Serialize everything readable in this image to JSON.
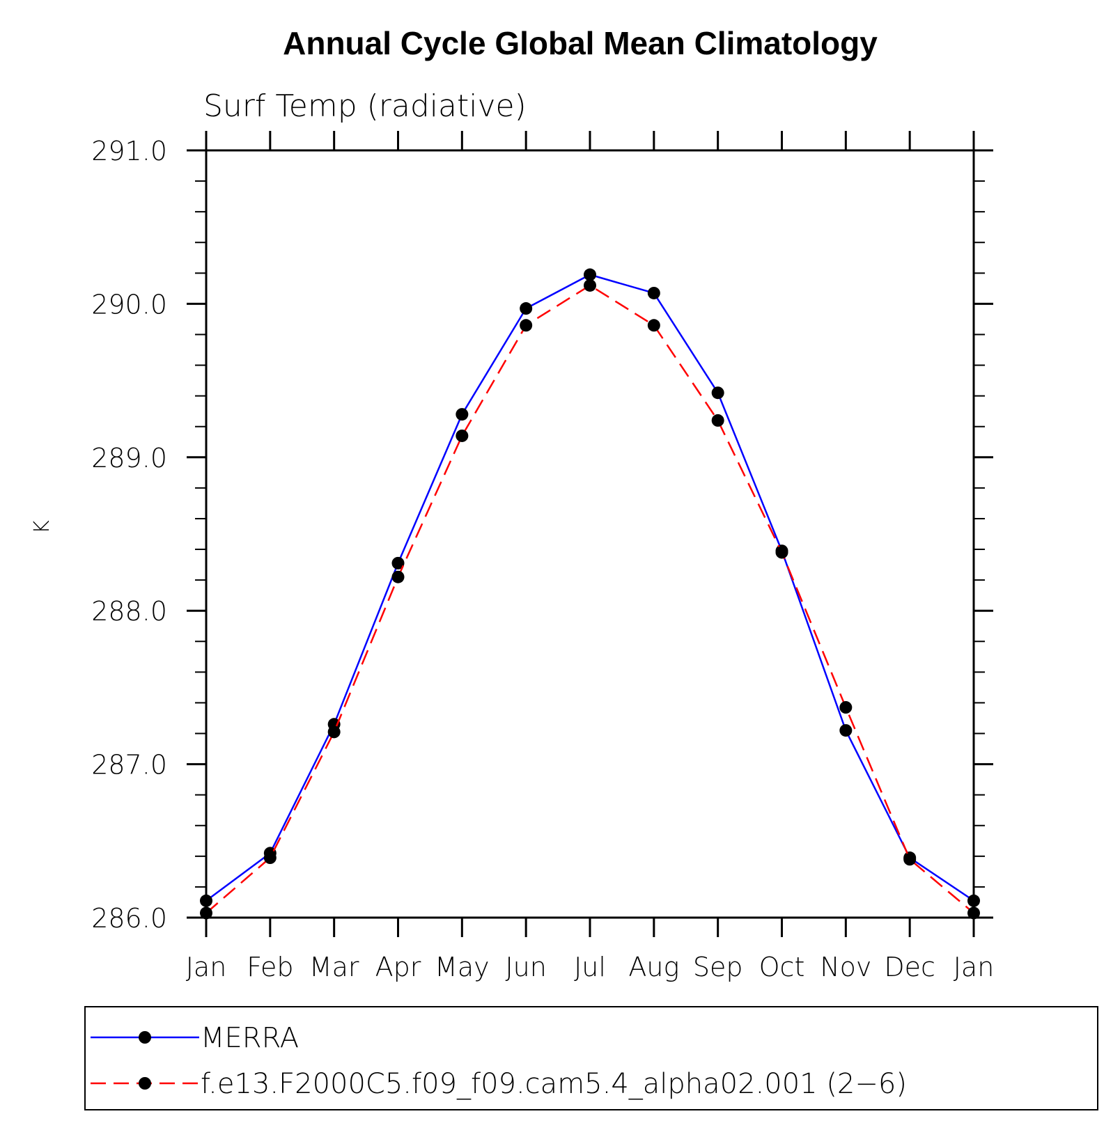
{
  "chart_data": {
    "type": "line",
    "title": "Annual Cycle Global Mean Climatology",
    "subtitle": "Surf Temp (radiative)",
    "xlabel": "",
    "ylabel": "K",
    "categories": [
      "Jan",
      "Feb",
      "Mar",
      "Apr",
      "May",
      "Jun",
      "Jul",
      "Aug",
      "Sep",
      "Oct",
      "Nov",
      "Dec",
      "Jan"
    ],
    "ylim": [
      286.0,
      291.0
    ],
    "yticks": [
      286.0,
      287.0,
      288.0,
      289.0,
      290.0,
      291.0
    ],
    "ytick_labels": [
      "286.0",
      "287.0",
      "288.0",
      "289.0",
      "290.0",
      "291.0"
    ],
    "y_minor_step": 0.2,
    "grid": false,
    "legend_position": "bottom",
    "series": [
      {
        "name": "MERRA",
        "color": "#0000ff",
        "dash": "solid",
        "marker": "circle",
        "values": [
          286.11,
          286.42,
          287.26,
          288.31,
          289.28,
          289.97,
          290.19,
          290.07,
          289.42,
          288.39,
          287.22,
          286.39,
          286.11
        ]
      },
      {
        "name": "f.e13.F2000C5.f09_f09.cam5.4_alpha02.001 (2−6)",
        "color": "#ff0000",
        "dash": "dashed",
        "marker": "circle",
        "values": [
          286.03,
          286.39,
          287.21,
          288.22,
          289.14,
          289.86,
          290.12,
          289.86,
          289.24,
          288.38,
          287.37,
          286.38,
          286.03
        ]
      }
    ]
  }
}
